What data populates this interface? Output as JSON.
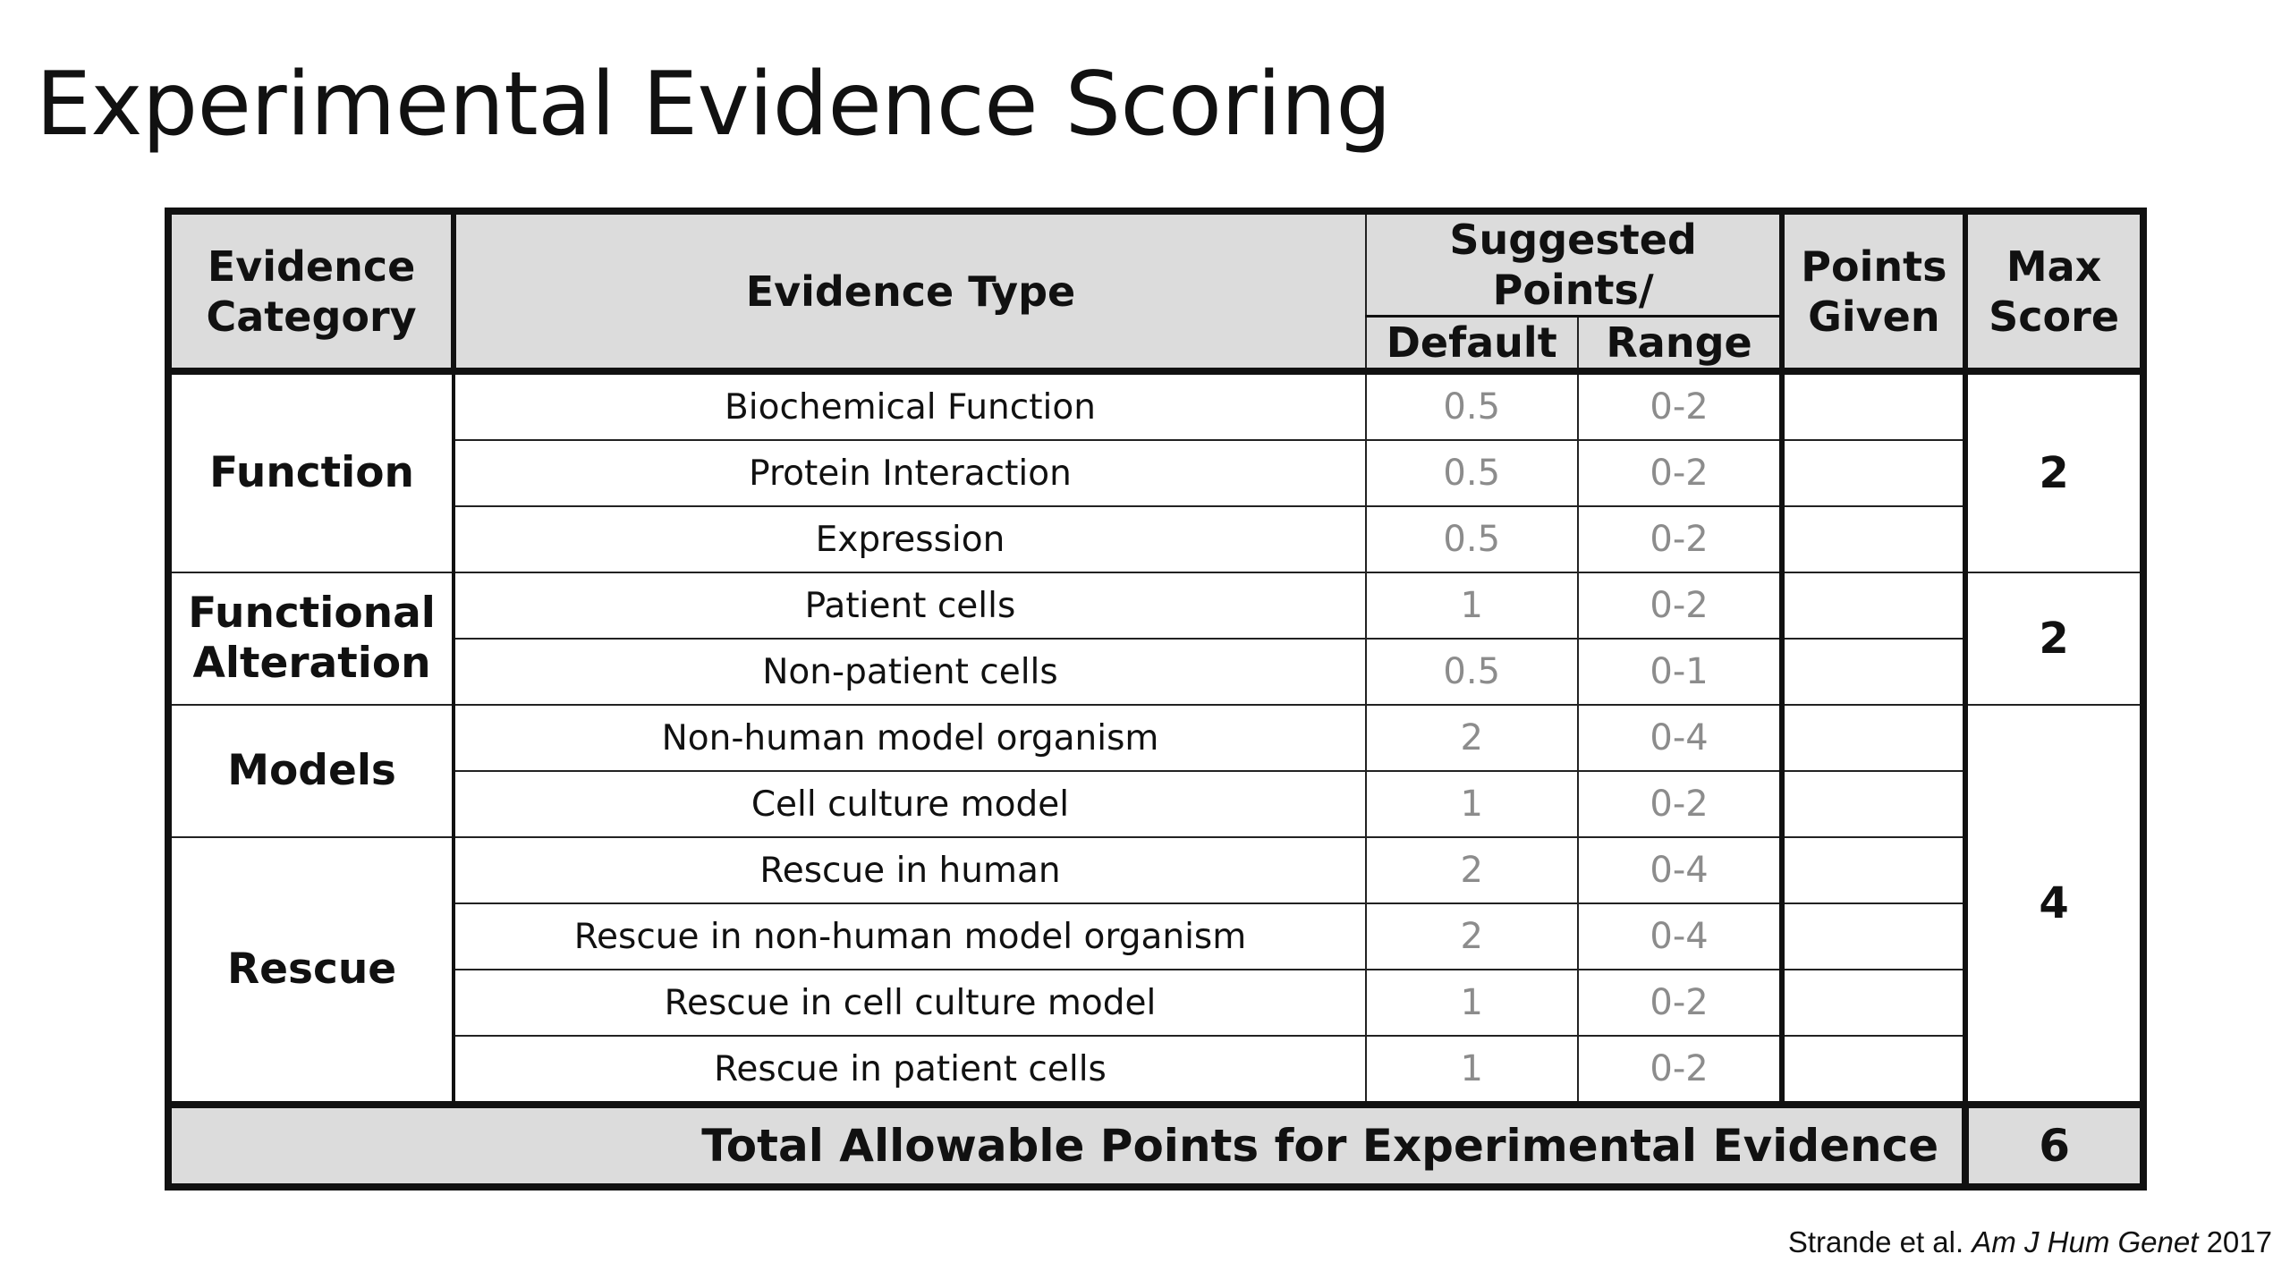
{
  "title": "Experimental Evidence Scoring",
  "table": {
    "headers": {
      "category": "Evidence Category",
      "type": "Evidence Type",
      "suggested": "Suggested Points/",
      "default": "Default",
      "range": "Range",
      "given": "Points Given",
      "max": "Max Score"
    },
    "groups": [
      {
        "category": "Function",
        "max": "2",
        "rows": [
          {
            "type": "Biochemical Function",
            "default": "0.5",
            "range": "0-2"
          },
          {
            "type": "Protein Interaction",
            "default": "0.5",
            "range": "0-2"
          },
          {
            "type": "Expression",
            "default": "0.5",
            "range": "0-2"
          }
        ]
      },
      {
        "category": "Functional Alteration",
        "max": "2",
        "rows": [
          {
            "type": "Patient cells",
            "default": "1",
            "range": "0-2"
          },
          {
            "type": "Non-patient cells",
            "default": "0.5",
            "range": "0-1"
          }
        ]
      },
      {
        "category": "Models",
        "max": "4",
        "rows": [
          {
            "type": "Non-human model organism",
            "default": "2",
            "range": "0-4"
          },
          {
            "type": "Cell culture model",
            "default": "1",
            "range": "0-2"
          }
        ]
      },
      {
        "category": "Rescue",
        "rows": [
          {
            "type": "Rescue in human",
            "default": "2",
            "range": "0-4"
          },
          {
            "type": "Rescue in non-human model organism",
            "default": "2",
            "range": "0-4"
          },
          {
            "type": "Rescue in cell culture model",
            "default": "1",
            "range": "0-2"
          },
          {
            "type": "Rescue in patient cells",
            "default": "1",
            "range": "0-2"
          }
        ]
      }
    ],
    "total_label": "Total Allowable Points for Experimental Evidence",
    "total_value": "6"
  },
  "citation": {
    "authors": "Strande et al.",
    "journal": "Am J Hum Genet",
    "year": "2017"
  }
}
